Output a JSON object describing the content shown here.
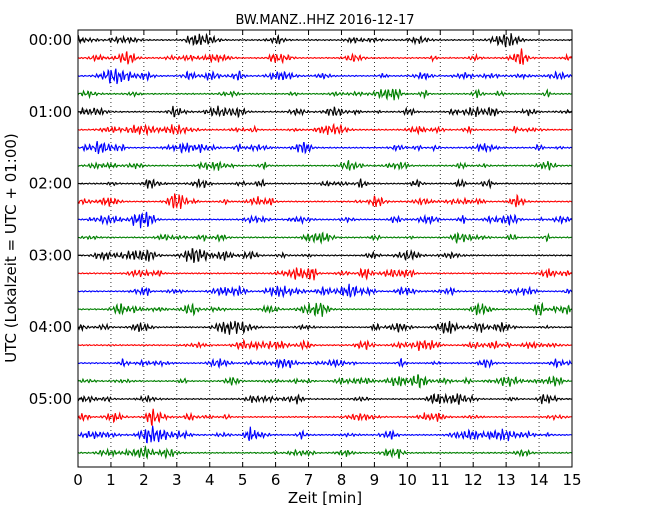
{
  "chart_data": {
    "type": "line",
    "title": "BW.MANZ..HHZ 2016-12-17",
    "xlabel": "Zeit  [min]",
    "ylabel": "UTC (Lokalzeit = UTC + 01:00)",
    "xlim": [
      0,
      15
    ],
    "x_ticks": [
      "0",
      "1",
      "2",
      "3",
      "4",
      "5",
      "6",
      "7",
      "8",
      "9",
      "10",
      "11",
      "12",
      "13",
      "14",
      "15"
    ],
    "y_ticks": [
      "00:00",
      "01:00",
      "02:00",
      "03:00",
      "04:00",
      "05:00"
    ],
    "traces_per_hour": 4,
    "trace_minutes": 15,
    "trace_count": 24,
    "grid": "vertical dotted at each minute",
    "colors": [
      "#000000",
      "#ff0000",
      "#0000ff",
      "#008000"
    ]
  }
}
